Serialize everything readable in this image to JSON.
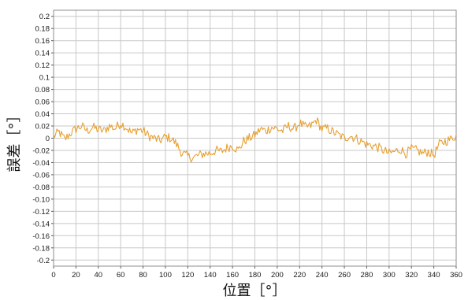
{
  "chart_data": {
    "type": "line",
    "title": "",
    "xlabel": "位置［°］",
    "ylabel": "誤差［°］",
    "xlim": [
      0,
      360
    ],
    "ylim": [
      -0.21,
      0.21
    ],
    "grid": true,
    "x_ticks": [
      "0",
      "20",
      "40",
      "60",
      "80",
      "100",
      "120",
      "140",
      "160",
      "180",
      "200",
      "220",
      "240",
      "260",
      "280",
      "300",
      "320",
      "340",
      "360"
    ],
    "y_ticks": [
      "0.2",
      "0.18",
      "0.16",
      "0.14",
      "0.12",
      "0.1",
      "0.08",
      "0.06",
      "0.04",
      "0.02",
      "0",
      "-0.02",
      "-0.04",
      "-0.06",
      "-0.08",
      "-0.10",
      "-0.12",
      "-0.14",
      "-0.16",
      "-0.18",
      "-0.2"
    ],
    "line_color": "#E8A030",
    "series": [
      {
        "x": [
          0,
          5,
          10,
          15,
          20,
          25,
          30,
          35,
          40,
          45,
          50,
          55,
          60,
          65,
          70,
          75,
          80,
          85,
          90,
          95,
          100,
          105,
          110,
          115,
          120,
          125,
          130,
          135,
          140,
          145,
          150,
          155,
          160,
          165,
          170,
          175,
          180,
          185,
          190,
          195,
          200,
          205,
          210,
          215,
          220,
          225,
          230,
          235,
          240,
          245,
          250,
          255,
          260,
          265,
          270,
          275,
          280,
          285,
          290,
          295,
          300,
          305,
          310,
          315,
          320,
          325,
          330,
          335,
          340,
          345,
          350,
          355,
          360
        ],
        "values": [
          0.003,
          0.01,
          -0.002,
          0.008,
          0.015,
          0.02,
          0.012,
          0.018,
          0.014,
          0.012,
          0.02,
          0.016,
          0.025,
          0.018,
          0.008,
          0.015,
          0.012,
          0.004,
          0.0,
          -0.004,
          0.002,
          0.0,
          -0.01,
          -0.025,
          -0.03,
          -0.032,
          -0.028,
          -0.025,
          -0.025,
          -0.02,
          -0.022,
          -0.016,
          -0.012,
          -0.02,
          -0.005,
          0.0,
          0.005,
          0.015,
          0.012,
          0.018,
          0.015,
          0.012,
          0.02,
          0.015,
          0.025,
          0.018,
          0.02,
          0.03,
          0.015,
          0.016,
          0.01,
          0.005,
          0.0,
          0.004,
          0.0,
          -0.005,
          -0.01,
          -0.012,
          -0.015,
          -0.02,
          -0.025,
          -0.022,
          -0.018,
          -0.025,
          -0.018,
          -0.02,
          -0.025,
          -0.022,
          -0.028,
          -0.01,
          -0.005,
          -0.002,
          0.005
        ]
      }
    ]
  }
}
